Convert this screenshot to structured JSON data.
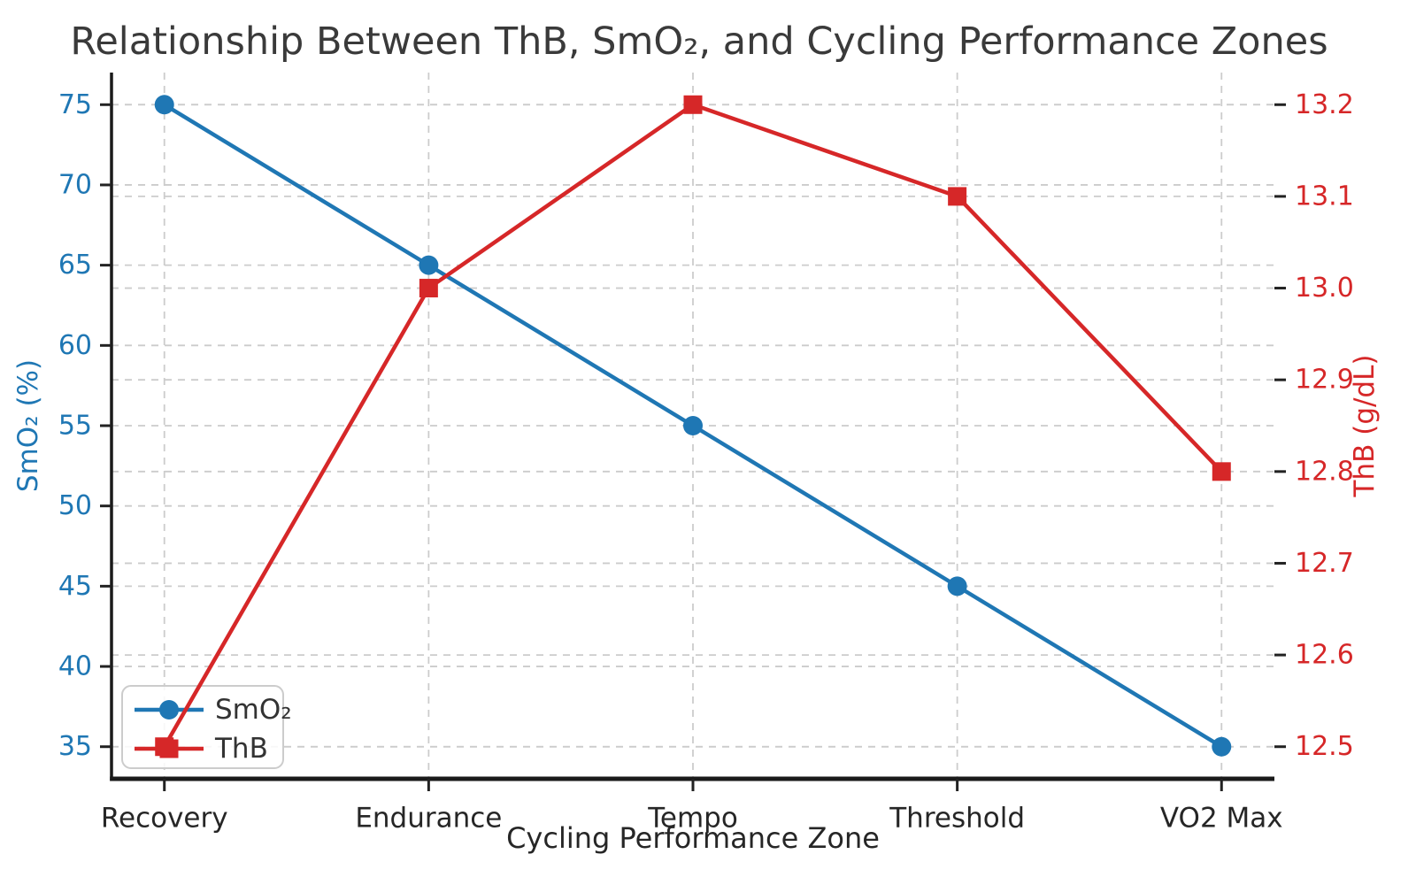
{
  "chart_data": {
    "type": "line",
    "title": "Relationship Between ThB, SmO₂, and Cycling Performance Zones",
    "xlabel": "Cycling Performance Zone",
    "categories": [
      "Recovery",
      "Endurance",
      "Tempo",
      "Threshold",
      "VO2 Max"
    ],
    "x_lim": [
      -0.2,
      4.2
    ],
    "series": [
      {
        "name": "SmO₂",
        "axis": "left",
        "color": "#1f77b4",
        "marker": "circle",
        "values": [
          75,
          65,
          55,
          45,
          35
        ]
      },
      {
        "name": "ThB",
        "axis": "right",
        "color": "#d62728",
        "marker": "square",
        "values": [
          12.5,
          13.0,
          13.2,
          13.1,
          12.8
        ]
      }
    ],
    "left_axis": {
      "label": "SmO₂ (%)",
      "color": "#1f77b4",
      "ticks": [
        35,
        40,
        45,
        50,
        55,
        60,
        65,
        70,
        75
      ],
      "lim": [
        33,
        77
      ],
      "decimals": 0
    },
    "right_axis": {
      "label": "ThB (g/dL)",
      "color": "#d62728",
      "ticks": [
        12.5,
        12.6,
        12.7,
        12.8,
        12.9,
        13.0,
        13.1,
        13.2
      ],
      "lim": [
        12.465,
        13.235
      ],
      "decimals": 1
    },
    "grid": {
      "on": true,
      "style": "dashed",
      "color": "#cccccc"
    },
    "legend": {
      "position": "lower left",
      "entries": [
        "SmO₂",
        "ThB"
      ]
    },
    "text_color_dark": "#262626",
    "spine_color": "#1a1a1a"
  }
}
